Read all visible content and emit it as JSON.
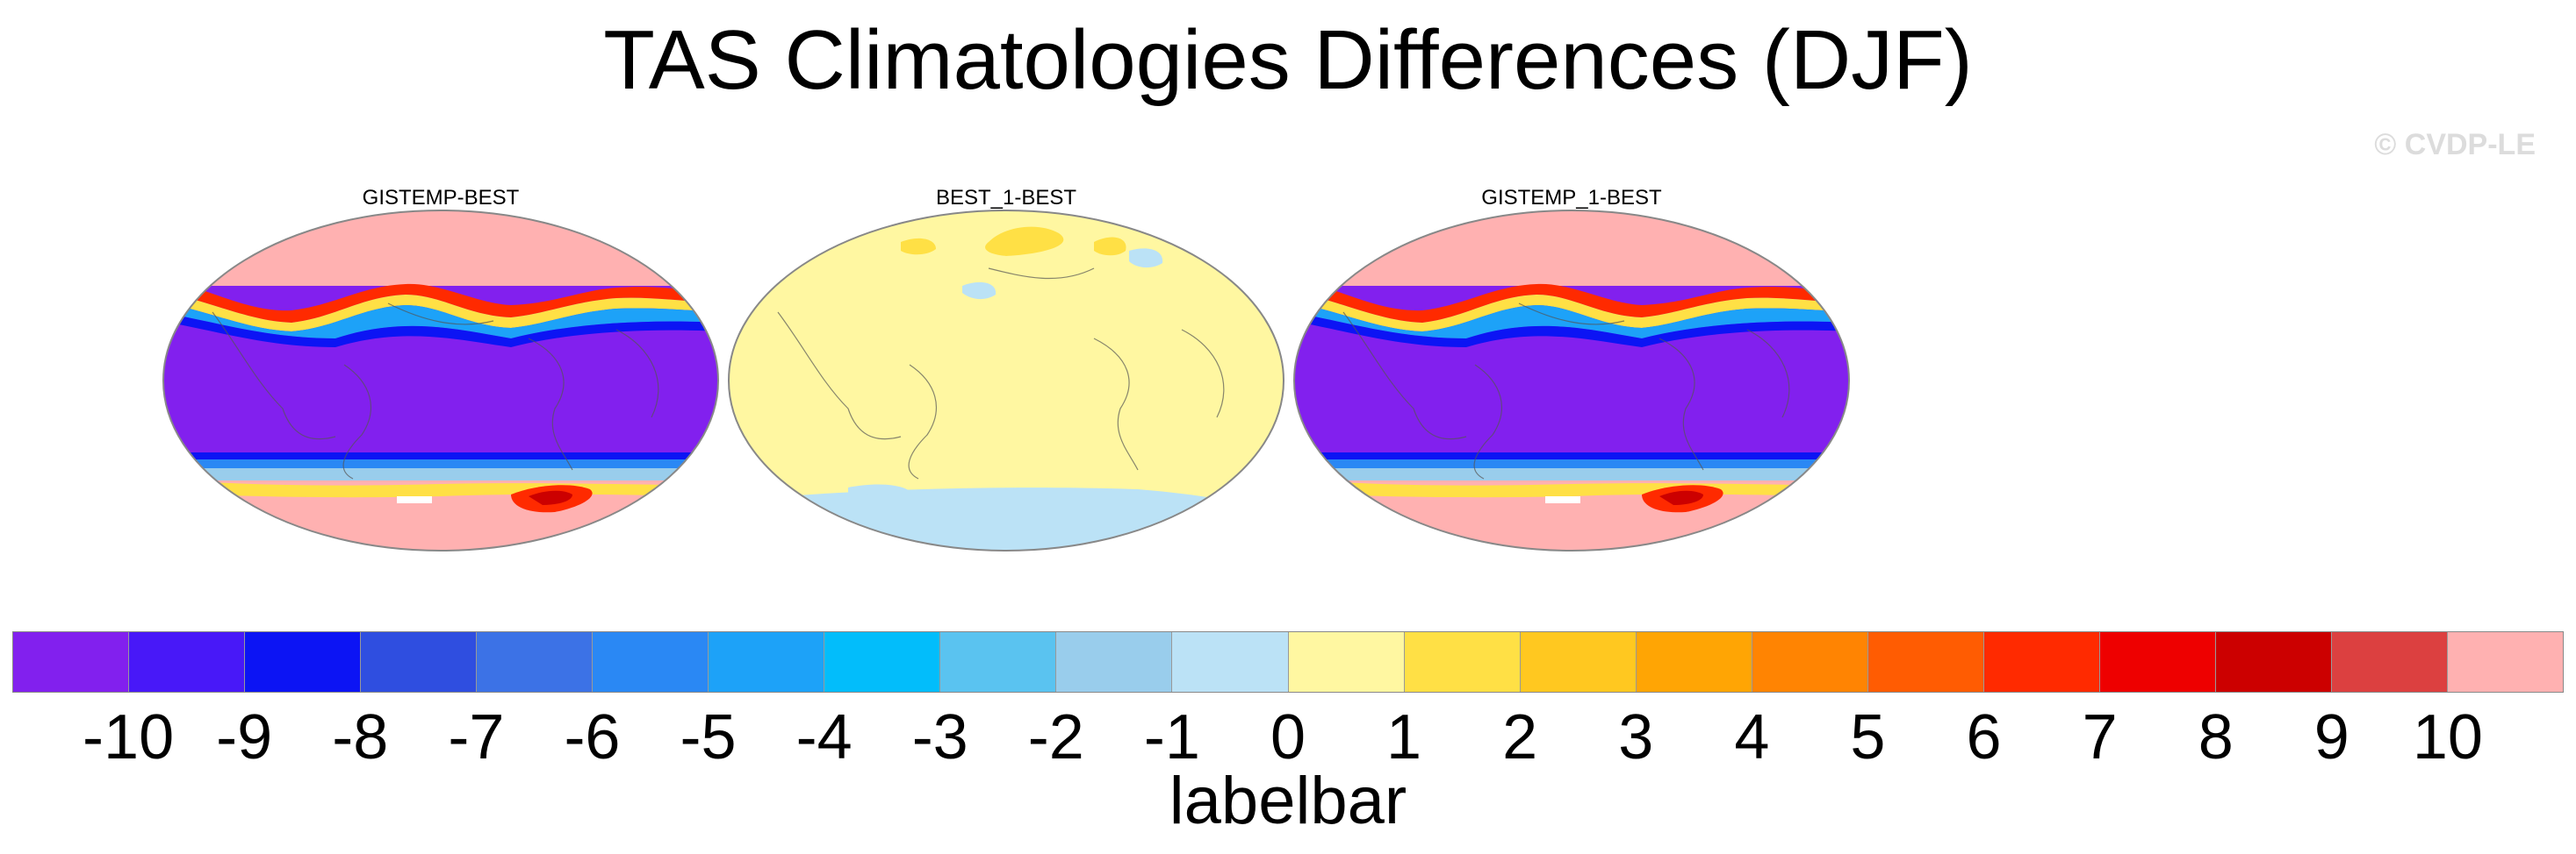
{
  "title": "TAS Climatologies Differences (DJF)",
  "watermark": "© CVDP-LE",
  "panels": [
    {
      "title": "GISTEMP-BEST",
      "pattern": "extreme"
    },
    {
      "title": "BEST_1-BEST",
      "pattern": "near-zero"
    },
    {
      "title": "GISTEMP_1-BEST",
      "pattern": "extreme"
    }
  ],
  "colorbar": {
    "label": "labelbar",
    "ticks": [
      "-10",
      "-9",
      "-8",
      "-7",
      "-6",
      "-5",
      "-4",
      "-3",
      "-2",
      "-1",
      "0",
      "1",
      "2",
      "3",
      "4",
      "5",
      "6",
      "7",
      "8",
      "9",
      "10"
    ],
    "colors": [
      "#8220ee",
      "#4818f8",
      "#0c14f4",
      "#2f4ee0",
      "#3c72e6",
      "#2a88f4",
      "#1da2f8",
      "#02bdfb",
      "#5ac3f0",
      "#99cdec",
      "#bbe2f6",
      "#fff7a1",
      "#ffe045",
      "#ffc820",
      "#ffa504",
      "#ff8402",
      "#ff5c02",
      "#ff2a00",
      "#ee0000",
      "#cc0000",
      "#dc4040",
      "#ffb1b1"
    ]
  }
}
